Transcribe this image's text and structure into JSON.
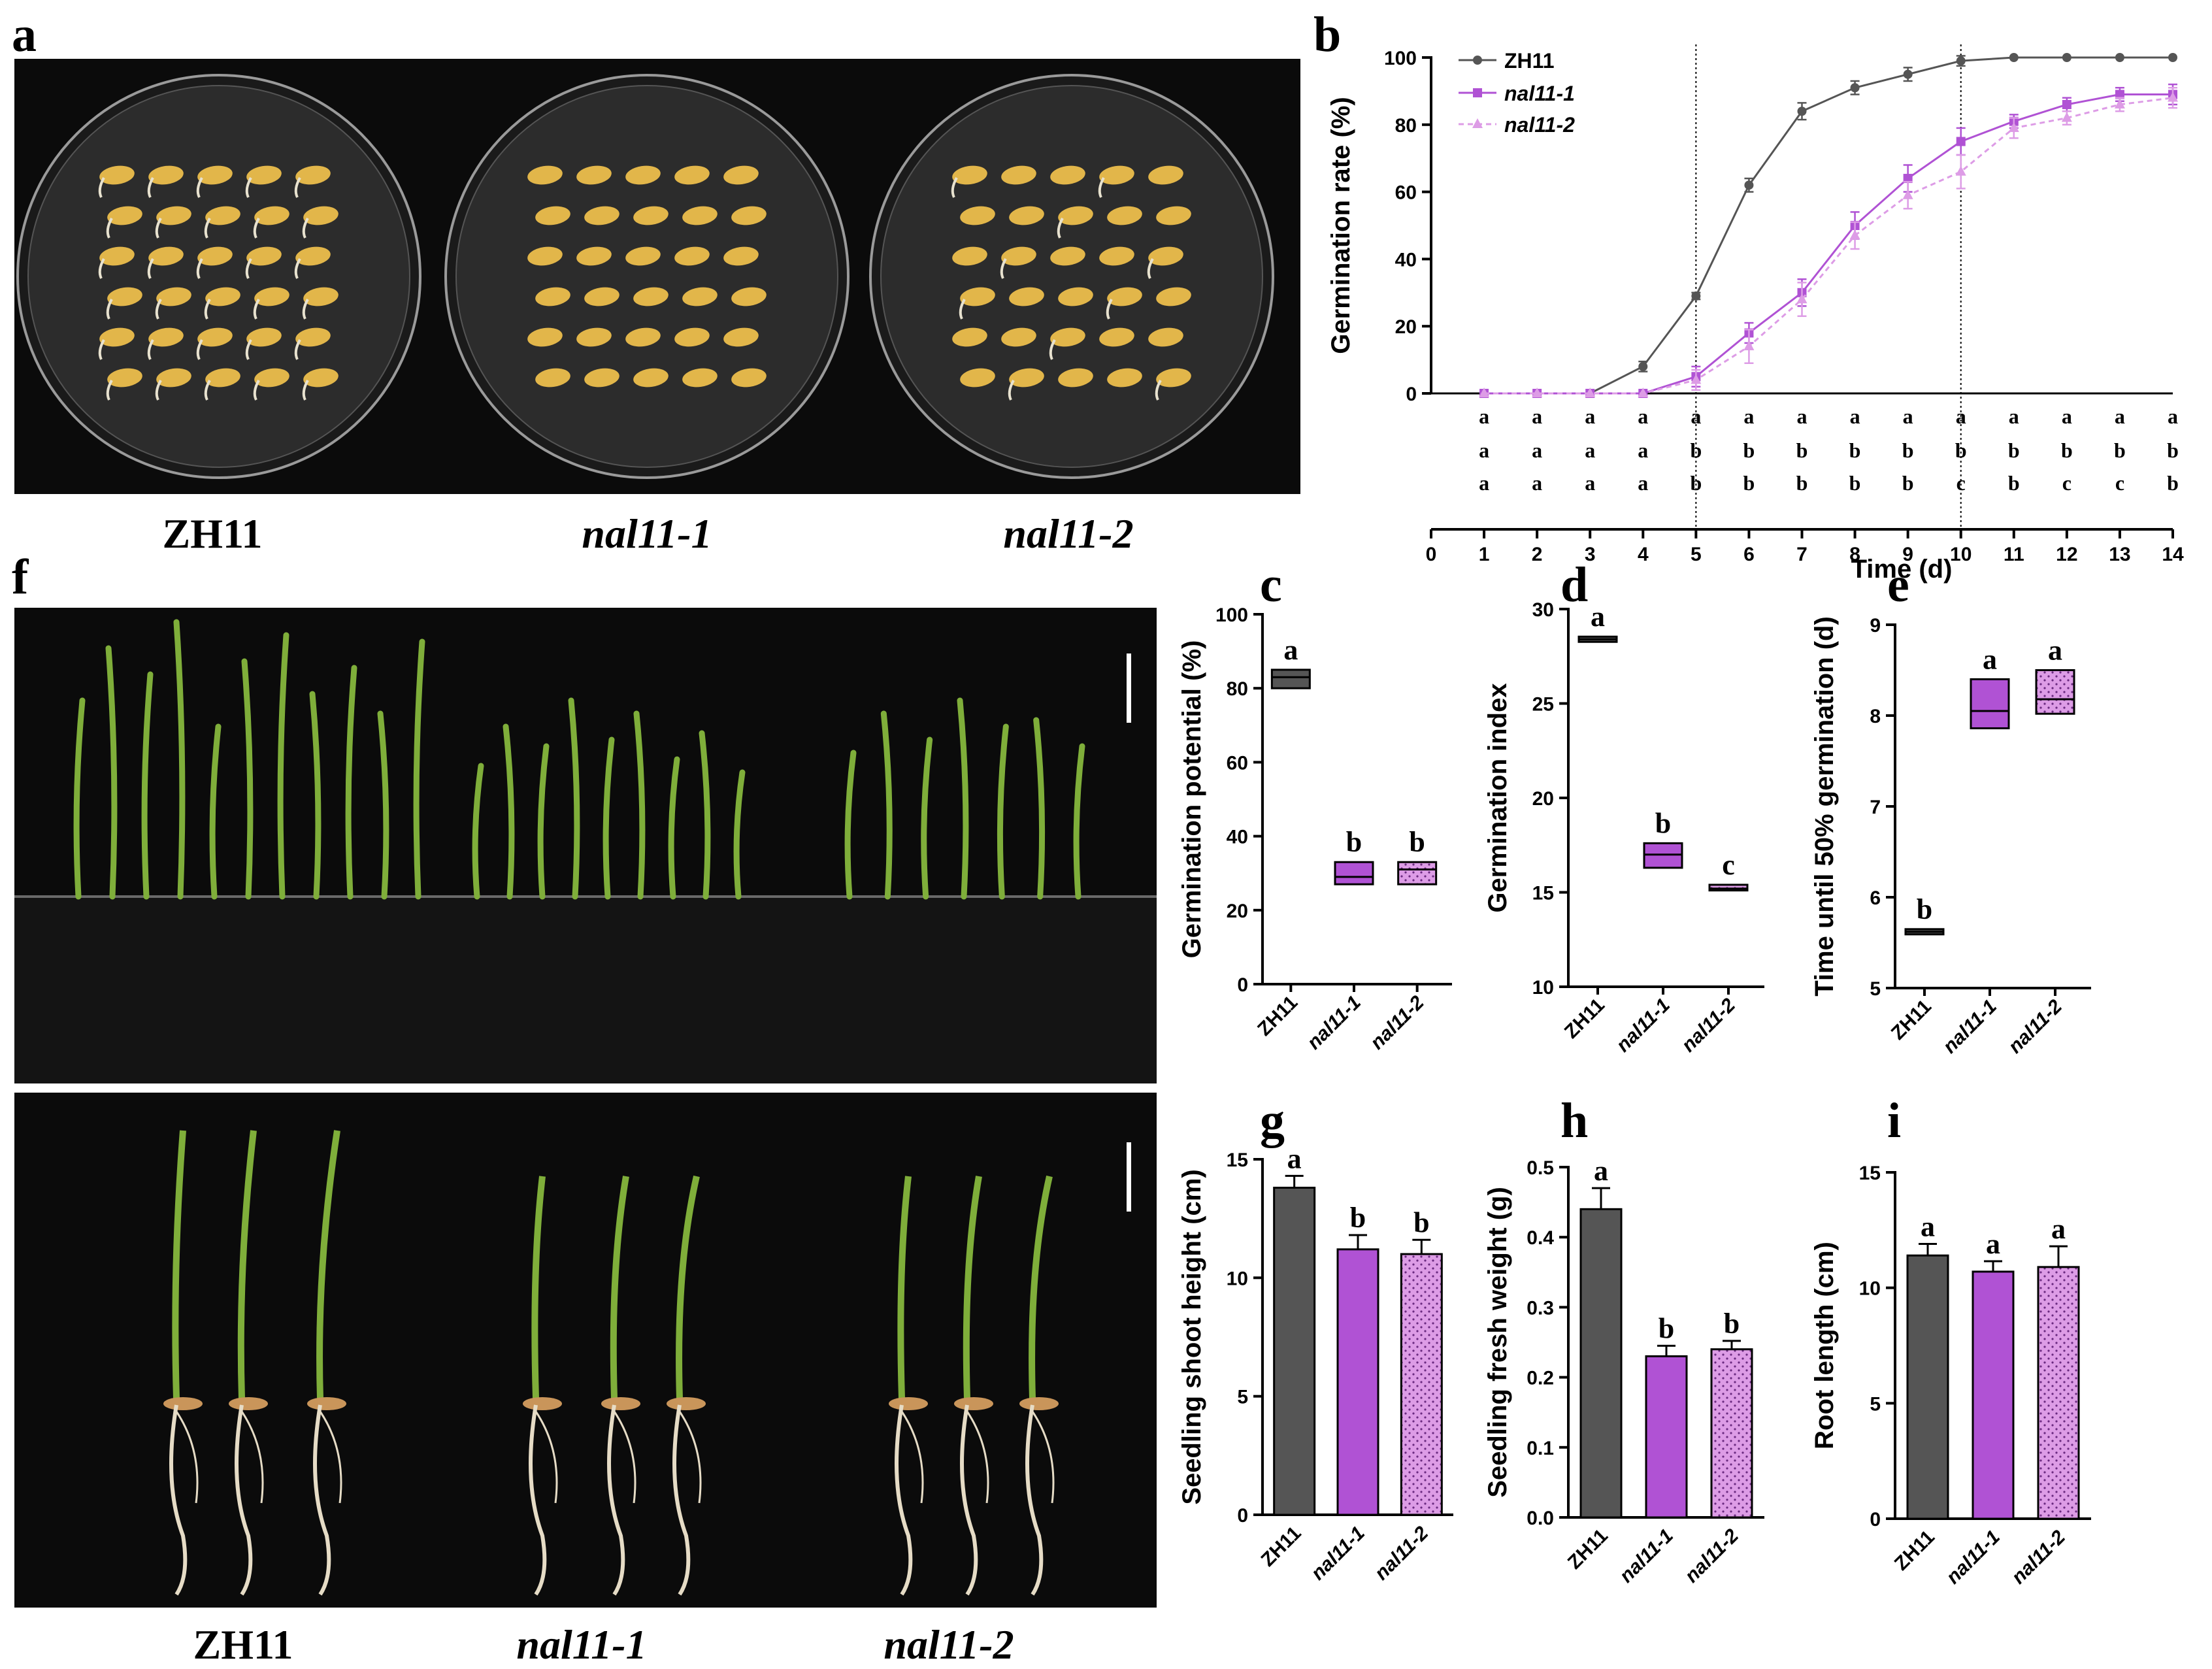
{
  "panel_labels": {
    "a": "a",
    "b": "b",
    "c": "c",
    "d": "d",
    "e": "e",
    "f": "f",
    "g": "g",
    "h": "h",
    "i": "i"
  },
  "genotypes": [
    "ZH11",
    "nal11-1",
    "nal11-2"
  ],
  "colors": {
    "zh11": "#555555",
    "nal1": "#b052d4",
    "nal2": "#dd9ce6",
    "photo_bg": "#0b0b0b",
    "dish_bg": "#2c2c2c",
    "seed": "#e2b64a",
    "leaf": "#7fae3a",
    "root": "#e6dcc6"
  },
  "chart_data": [
    {
      "id": "b",
      "type": "line",
      "xlabel": "Time (d)",
      "ylabel": "Germination rate (%)",
      "xlim": [
        0,
        14
      ],
      "ylim": [
        0,
        100
      ],
      "xticks": [
        0,
        1,
        2,
        3,
        4,
        5,
        6,
        7,
        8,
        9,
        10,
        11,
        12,
        13,
        14
      ],
      "yticks": [
        0,
        20,
        40,
        60,
        80,
        100
      ],
      "vlines": [
        5,
        10
      ],
      "x": [
        1,
        2,
        3,
        4,
        5,
        6,
        7,
        8,
        9,
        10,
        11,
        12,
        13,
        14
      ],
      "series": [
        {
          "name": "ZH11",
          "values": [
            0,
            0,
            0,
            8,
            29,
            62,
            84,
            91,
            95,
            99,
            100,
            100,
            100,
            100
          ],
          "err": [
            0,
            0,
            0,
            1.5,
            1,
            2,
            2.5,
            2,
            2,
            1.5,
            0,
            0,
            0,
            0
          ]
        },
        {
          "name": "nal11-1",
          "values": [
            0,
            0,
            0,
            0,
            5,
            18,
            30,
            50,
            64,
            75,
            81,
            86,
            89,
            89
          ],
          "err": [
            0,
            0,
            0,
            0,
            3,
            3,
            4,
            4,
            4,
            4,
            2,
            2,
            2,
            3
          ]
        },
        {
          "name": "nal11-2",
          "values": [
            0,
            0,
            0,
            0,
            4,
            14,
            28,
            47,
            59,
            66,
            79,
            82,
            86,
            88
          ],
          "err": [
            0,
            0,
            0,
            0,
            3,
            5,
            5,
            4,
            4,
            5,
            3,
            2,
            2,
            3
          ]
        }
      ],
      "letters": [
        [
          "a",
          "a",
          "a",
          "a",
          "a",
          "a",
          "a",
          "a",
          "a",
          "a",
          "a",
          "a",
          "a",
          "a"
        ],
        [
          "a",
          "a",
          "a",
          "a",
          "b",
          "b",
          "b",
          "b",
          "b",
          "b",
          "b",
          "b",
          "b",
          "b"
        ],
        [
          "a",
          "a",
          "a",
          "a",
          "b",
          "b",
          "b",
          "b",
          "b",
          "c",
          "b",
          "c",
          "c",
          "b"
        ]
      ]
    },
    {
      "id": "c",
      "type": "box",
      "ylabel": "Germination potential (%)",
      "ylim": [
        0,
        100
      ],
      "yticks": [
        0,
        20,
        40,
        60,
        80,
        100
      ],
      "categories": [
        "ZH11",
        "nal11-1",
        "nal11-2"
      ],
      "boxes": [
        {
          "min": 80,
          "median": 83,
          "max": 85
        },
        {
          "min": 27,
          "median": 29,
          "max": 33
        },
        {
          "min": 27,
          "median": 31,
          "max": 33
        }
      ],
      "letters": [
        "a",
        "b",
        "b"
      ]
    },
    {
      "id": "d",
      "type": "box",
      "ylabel": "Germination index",
      "ylim": [
        10,
        30
      ],
      "yticks": [
        10,
        15,
        20,
        25,
        30
      ],
      "categories": [
        "ZH11",
        "nal11-1",
        "nal11-2"
      ],
      "boxes": [
        {
          "min": 28.3,
          "median": 28.4,
          "max": 28.5
        },
        {
          "min": 16.3,
          "median": 17.0,
          "max": 17.6
        },
        {
          "min": 15.1,
          "median": 15.2,
          "max": 15.4
        }
      ],
      "letters": [
        "a",
        "b",
        "c"
      ]
    },
    {
      "id": "e",
      "type": "box",
      "ylabel": "Time until 50% germination (d)",
      "ylim": [
        5,
        9
      ],
      "yticks": [
        5,
        6,
        7,
        8,
        9
      ],
      "categories": [
        "ZH11",
        "nal11-1",
        "nal11-2"
      ],
      "boxes": [
        {
          "min": 5.6,
          "median": 5.62,
          "max": 5.64
        },
        {
          "min": 7.86,
          "median": 8.05,
          "max": 8.4
        },
        {
          "min": 8.02,
          "median": 8.18,
          "max": 8.5
        }
      ],
      "letters": [
        "b",
        "a",
        "a"
      ]
    },
    {
      "id": "g",
      "type": "bar",
      "ylabel": "Seedling shoot height (cm)",
      "ylim": [
        0,
        15
      ],
      "yticks": [
        0,
        5,
        10,
        15
      ],
      "categories": [
        "ZH11",
        "nal11-1",
        "nal11-2"
      ],
      "values": [
        13.8,
        11.2,
        11.0
      ],
      "err": [
        0.5,
        0.6,
        0.6
      ],
      "letters": [
        "a",
        "b",
        "b"
      ]
    },
    {
      "id": "h",
      "type": "bar",
      "ylabel": "Seedling fresh weight (g)",
      "ylim": [
        0,
        0.5
      ],
      "yticks": [
        0.0,
        0.1,
        0.2,
        0.3,
        0.4,
        0.5
      ],
      "categories": [
        "ZH11",
        "nal11-1",
        "nal11-2"
      ],
      "values": [
        0.44,
        0.23,
        0.24
      ],
      "err": [
        0.03,
        0.015,
        0.012
      ],
      "letters": [
        "a",
        "b",
        "b"
      ]
    },
    {
      "id": "i",
      "type": "bar",
      "ylabel": "Root length (cm)",
      "ylim": [
        0,
        15
      ],
      "yticks": [
        0,
        5,
        10,
        15
      ],
      "categories": [
        "ZH11",
        "nal11-1",
        "nal11-2"
      ],
      "values": [
        11.4,
        10.7,
        10.9
      ],
      "err": [
        0.5,
        0.45,
        0.9
      ],
      "letters": [
        "a",
        "a",
        "a"
      ]
    }
  ]
}
